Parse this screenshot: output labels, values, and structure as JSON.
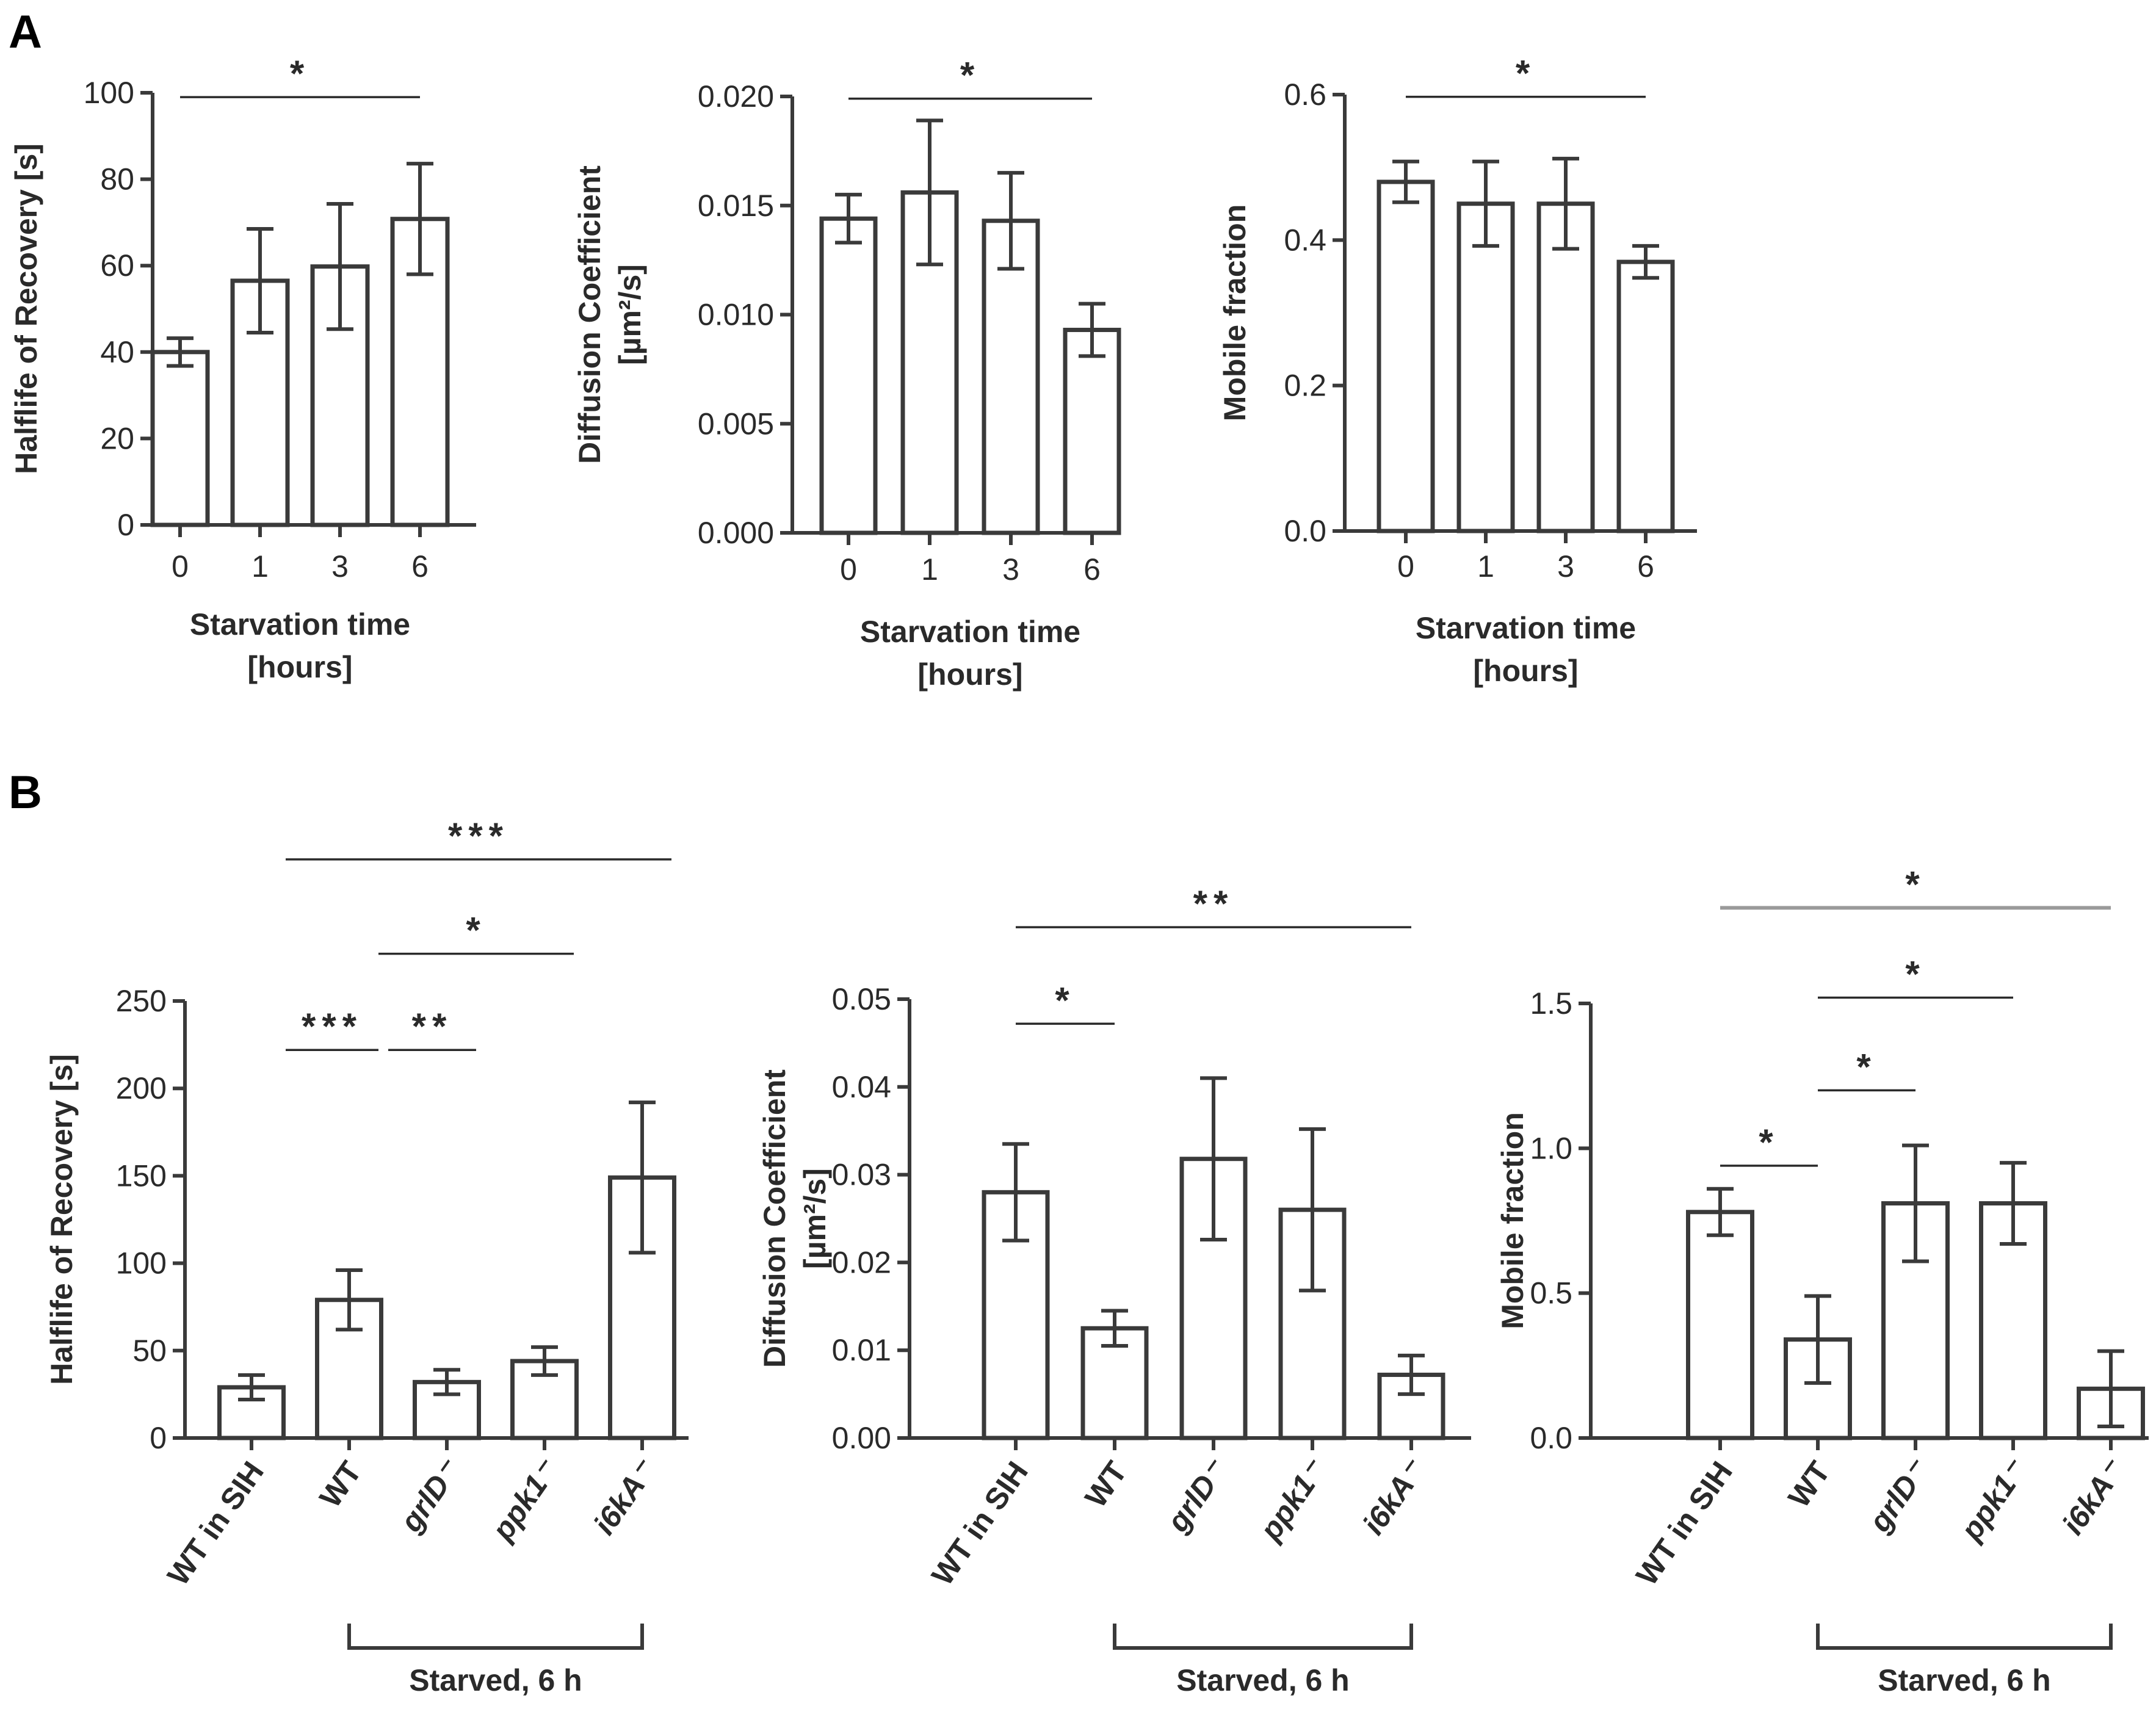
{
  "panel_letters": [
    "A",
    "B"
  ],
  "starved_label": "Starved,  6 h",
  "chart_data": [
    {
      "panel": "A",
      "type": "bar",
      "title": "",
      "categories": [
        "0",
        "1",
        "3",
        "6"
      ],
      "values": [
        40,
        56.5,
        59.8,
        70.8
      ],
      "errors": [
        3.2,
        12,
        14.5,
        12.8
      ],
      "xlabel_lines": [
        "Starvation time",
        "[hours]"
      ],
      "ylabel_lines": [
        "Halflife of Recovery [s]"
      ],
      "ylim": [
        0,
        100
      ],
      "yticks": [
        "0",
        "20",
        "40",
        "60",
        "80",
        "100"
      ],
      "significance": [
        {
          "from": 0,
          "to": 3,
          "label": "*",
          "y": 99
        }
      ]
    },
    {
      "panel": "A",
      "type": "bar",
      "title": "",
      "categories": [
        "0",
        "1",
        "3",
        "6"
      ],
      "values": [
        0.0144,
        0.0156,
        0.0143,
        0.0093
      ],
      "errors": [
        0.0011,
        0.0033,
        0.0022,
        0.0012
      ],
      "xlabel_lines": [
        "Starvation time",
        "[hours]"
      ],
      "ylabel_lines": [
        "Diffusion Coefficient",
        "[µm²/s]"
      ],
      "ylim": [
        0,
        0.02
      ],
      "yticks": [
        "0.000",
        "0.005",
        "0.010",
        "0.015",
        "0.020"
      ],
      "significance": [
        {
          "from": 0,
          "to": 3,
          "label": "*",
          "y": 0.0199
        }
      ]
    },
    {
      "panel": "A",
      "type": "bar",
      "title": "",
      "categories": [
        "0",
        "1",
        "3",
        "6"
      ],
      "values": [
        0.48,
        0.45,
        0.45,
        0.37
      ],
      "errors": [
        0.028,
        0.058,
        0.062,
        0.022
      ],
      "xlabel_lines": [
        "Starvation time",
        "[hours]"
      ],
      "ylabel_lines": [
        "Mobile fraction"
      ],
      "ylim": [
        0,
        0.6
      ],
      "yticks": [
        "0.0",
        "0.2",
        "0.4",
        "0.6"
      ],
      "significance": [
        {
          "from": 0,
          "to": 3,
          "label": "*",
          "y": 0.597
        }
      ]
    },
    {
      "panel": "B",
      "type": "bar",
      "title": "",
      "categories": [
        "WT in SIH",
        "WT",
        "grlD⁻",
        "ppk1⁻",
        "i6kA⁻"
      ],
      "italic_categories": [
        false,
        false,
        true,
        true,
        true
      ],
      "values": [
        29,
        79,
        32,
        44,
        149
      ],
      "errors": [
        7,
        17,
        7,
        8,
        43
      ],
      "xlabel_lines": [],
      "bracket": {
        "from": 1,
        "to": 4
      },
      "ylabel_lines": [
        "Halflife of Recovery [s]"
      ],
      "ylim": [
        0,
        250
      ],
      "yticks": [
        "0",
        "50",
        "100",
        "150",
        "200",
        "250"
      ],
      "significance": [
        {
          "from": 0.35,
          "to": 1.3,
          "label": "***",
          "y": 222
        },
        {
          "from": 1.4,
          "to": 2.3,
          "label": "**",
          "y": 222
        },
        {
          "from": 1.3,
          "to": 3.3,
          "label": "*",
          "y": 277
        },
        {
          "from": 0.35,
          "to": 4.3,
          "label": "***",
          "y": 331
        }
      ]
    },
    {
      "panel": "B",
      "type": "bar",
      "title": "",
      "categories": [
        "WT in SIH",
        "WT",
        "grlD⁻",
        "ppk1⁻",
        "i6kA⁻"
      ],
      "italic_categories": [
        false,
        false,
        true,
        true,
        true
      ],
      "values": [
        0.028,
        0.0125,
        0.0318,
        0.026,
        0.0072
      ],
      "errors": [
        0.0055,
        0.002,
        0.0092,
        0.0092,
        0.0022
      ],
      "xlabel_lines": [],
      "bracket": {
        "from": 1,
        "to": 4
      },
      "ylabel_lines": [
        "Diffusion Coefficient",
        "[µm²/s]"
      ],
      "ylim": [
        0,
        0.05
      ],
      "yticks": [
        "0.00",
        "0.01",
        "0.02",
        "0.03",
        "0.04",
        "0.05"
      ],
      "significance": [
        {
          "from": 0,
          "to": 1,
          "label": "*",
          "y": 0.0472
        },
        {
          "from": 0,
          "to": 4,
          "label": "**",
          "y": 0.0582
        }
      ]
    },
    {
      "panel": "B",
      "type": "bar",
      "title": "",
      "categories": [
        "WT in SIH",
        "WT",
        "grlD⁻",
        "ppk1⁻",
        "i6kA⁻"
      ],
      "italic_categories": [
        false,
        false,
        true,
        true,
        true
      ],
      "values": [
        0.78,
        0.34,
        0.81,
        0.81,
        0.17
      ],
      "errors": [
        0.08,
        0.15,
        0.2,
        0.14,
        0.13
      ],
      "xlabel_lines": [],
      "bracket": {
        "from": 1,
        "to": 4
      },
      "ylabel_lines": [
        "Mobile fraction"
      ],
      "ylim": [
        0,
        1.5
      ],
      "yticks": [
        "0.0",
        "0.5",
        "1.0",
        "1.5"
      ],
      "significance": [
        {
          "from": 0,
          "to": 1,
          "label": "*",
          "y": 0.94
        },
        {
          "from": 1,
          "to": 2,
          "label": "*",
          "y": 1.2
        },
        {
          "from": 1,
          "to": 3,
          "label": "*",
          "y": 1.52
        },
        {
          "from": 0,
          "to": 4,
          "label": "*",
          "y": 1.83,
          "color": "#9a9a9a"
        }
      ]
    }
  ]
}
